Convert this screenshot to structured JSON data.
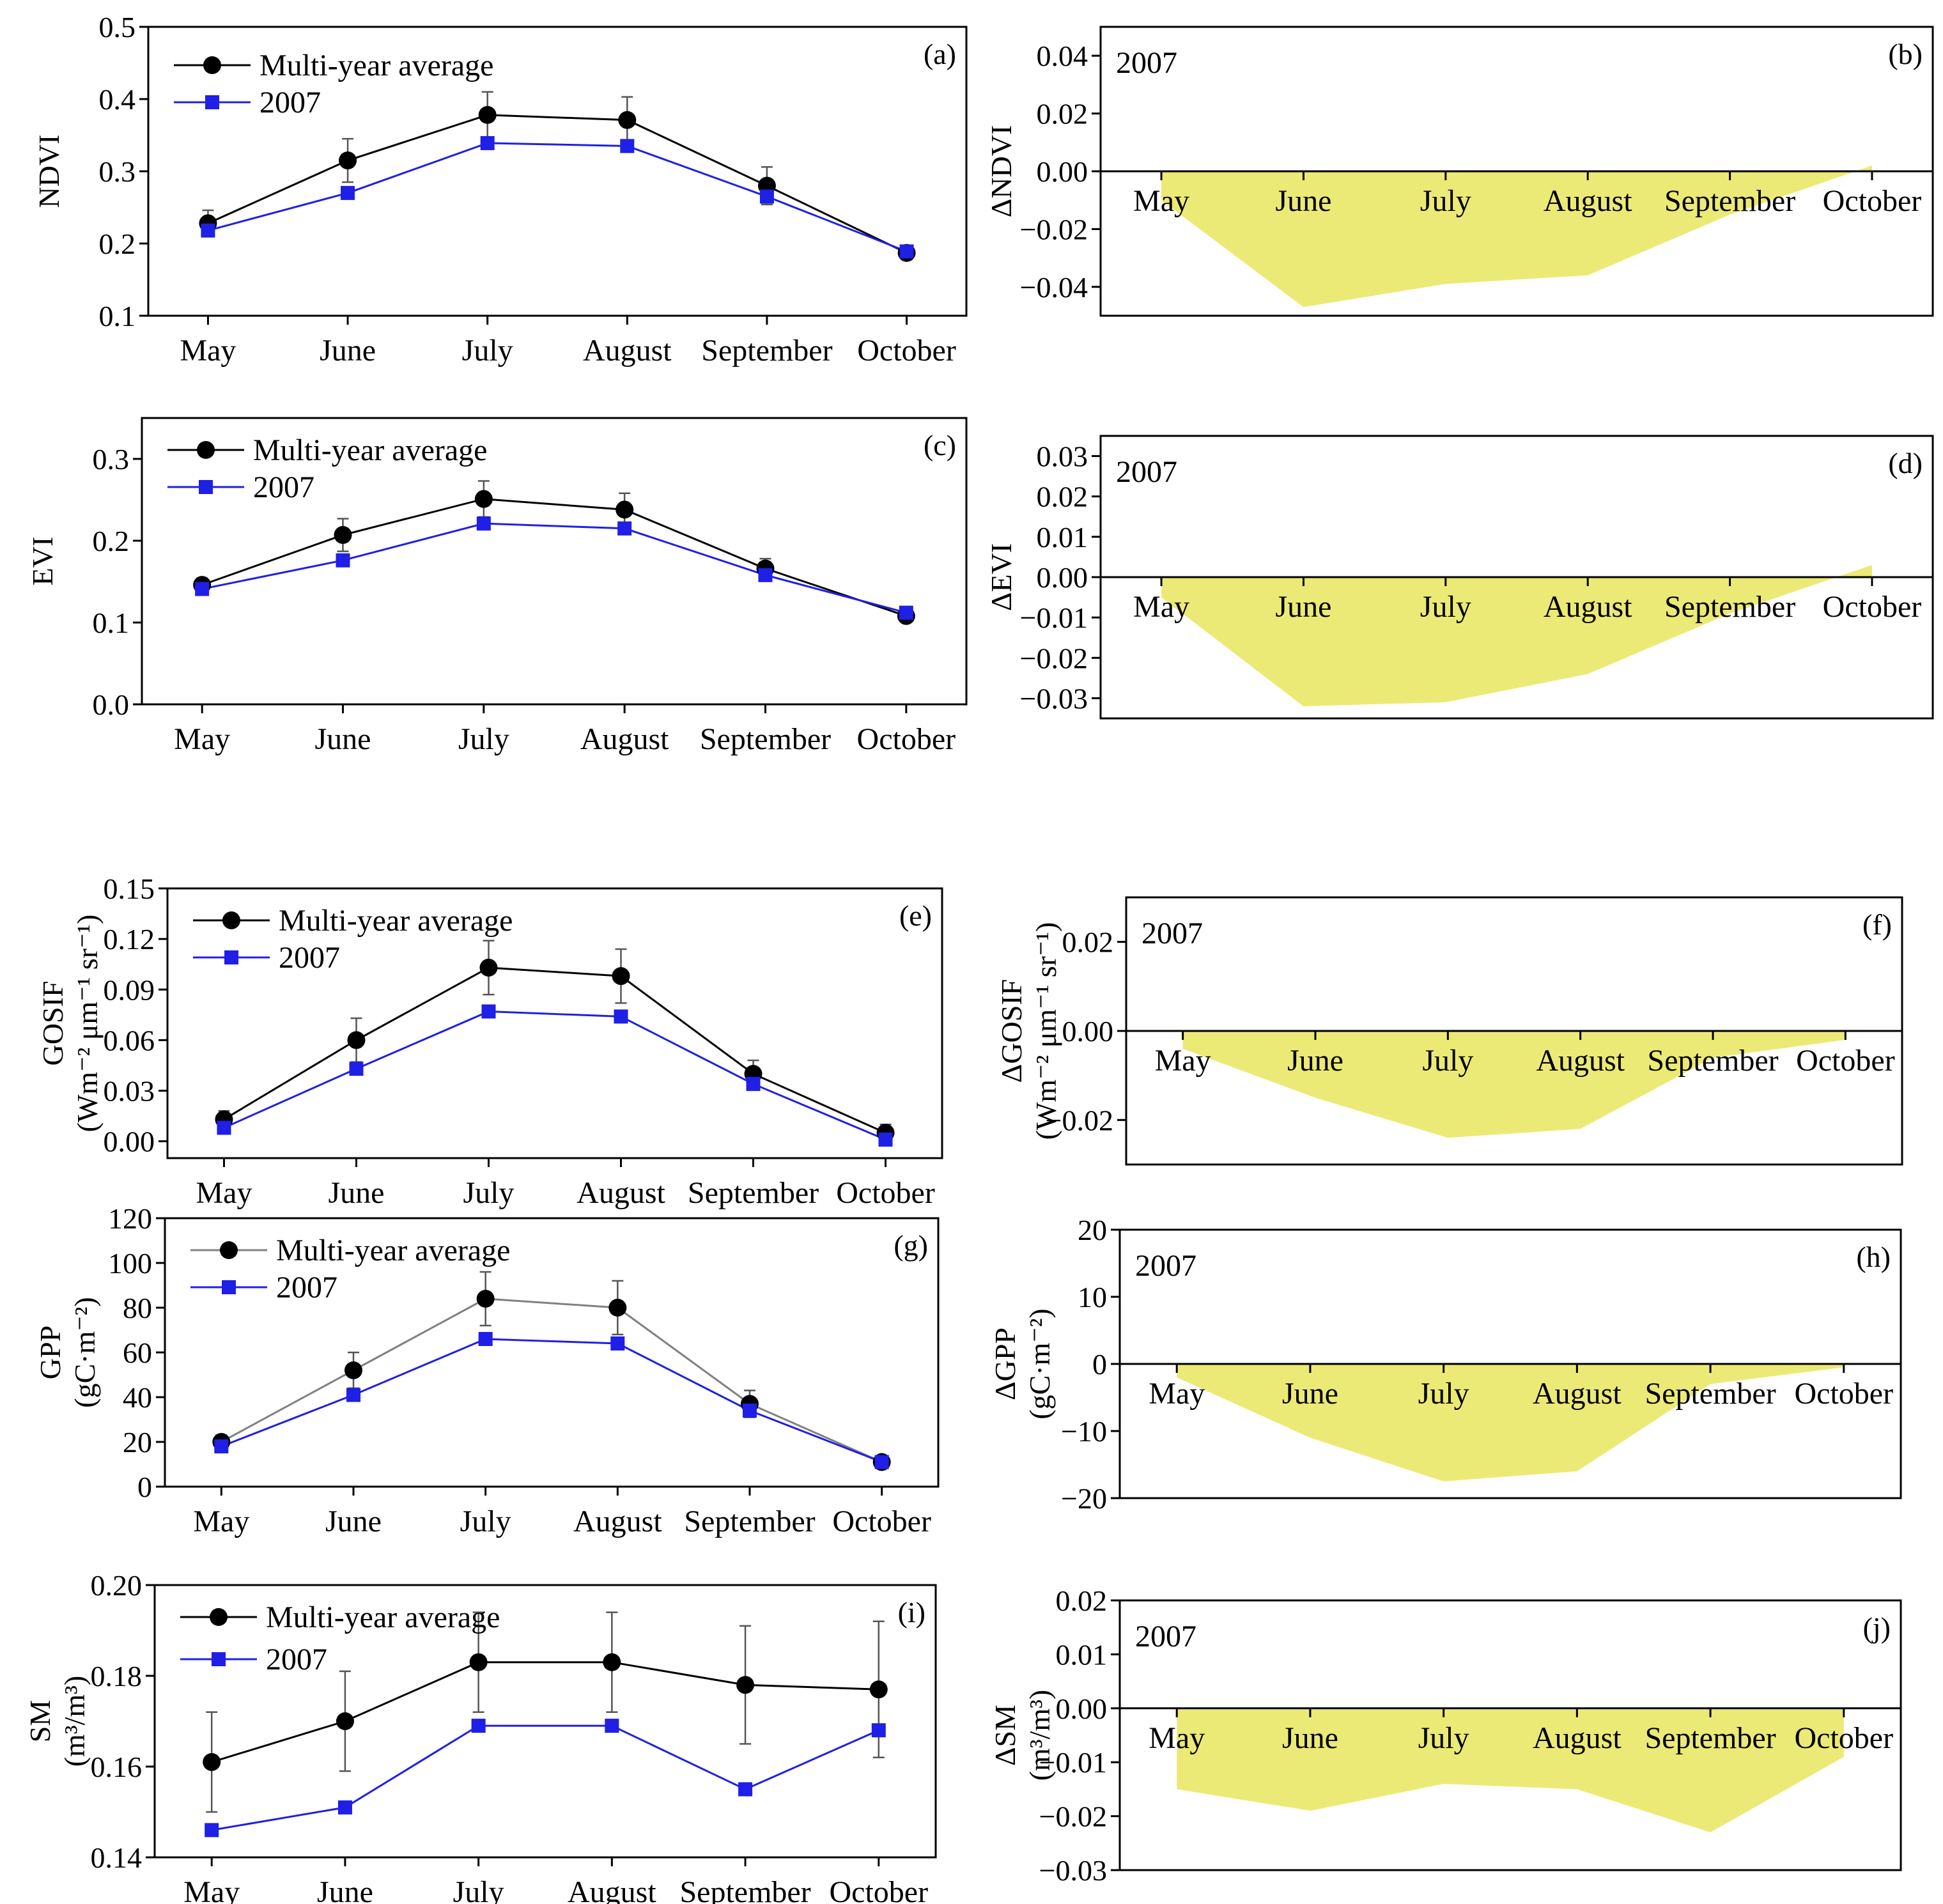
{
  "figure": {
    "months": [
      "May",
      "June",
      "July",
      "August",
      "September",
      "October"
    ],
    "legend_avg": "Multi-year average",
    "legend_year": "2007",
    "year_label": "2007",
    "colors": {
      "avg": "#000000",
      "year": "#1f1fe6",
      "fill": "#ecea76",
      "axis": "#000000"
    }
  },
  "chart_data": [
    {
      "id": "a",
      "type": "line",
      "panel_label": "(a)",
      "ylabel": [
        "NDVI"
      ],
      "ylim": [
        0.1,
        0.5
      ],
      "yticks": [
        0.1,
        0.2,
        0.3,
        0.4,
        0.5
      ],
      "tick_labels": [
        "0.1",
        "0.2",
        "0.3",
        "0.4",
        "0.5"
      ],
      "categories": [
        "May",
        "June",
        "July",
        "August",
        "September",
        "October"
      ],
      "series": [
        {
          "name": "Multi-year average",
          "values": [
            0.228,
            0.315,
            0.378,
            0.371,
            0.28,
            0.187
          ],
          "errors": [
            0.018,
            0.03,
            0.032,
            0.032,
            0.026,
            0.006
          ]
        },
        {
          "name": "2007",
          "values": [
            0.218,
            0.27,
            0.339,
            0.335,
            0.265,
            0.189
          ]
        }
      ]
    },
    {
      "id": "b",
      "type": "area",
      "panel_label": "(b)",
      "ylabel": [
        "ΔNDVI"
      ],
      "ylim": [
        -0.05,
        0.05
      ],
      "yticks": [
        -0.04,
        -0.02,
        0.0,
        0.02,
        0.04
      ],
      "tick_labels": [
        "−0.04",
        "−0.02",
        "0.00",
        "0.02",
        "0.04"
      ],
      "categories": [
        "May",
        "June",
        "July",
        "August",
        "September",
        "October"
      ],
      "values": [
        -0.01,
        -0.047,
        -0.039,
        -0.036,
        -0.015,
        0.002
      ],
      "year_label": "2007"
    },
    {
      "id": "c",
      "type": "line",
      "panel_label": "(c)",
      "ylabel": [
        "EVI"
      ],
      "ylim": [
        0.0,
        0.35
      ],
      "yticks": [
        0.0,
        0.1,
        0.2,
        0.3
      ],
      "tick_labels": [
        "0.0",
        "0.1",
        "0.2",
        "0.3"
      ],
      "categories": [
        "May",
        "June",
        "July",
        "August",
        "September",
        "October"
      ],
      "series": [
        {
          "name": "Multi-year average",
          "values": [
            0.146,
            0.207,
            0.251,
            0.238,
            0.166,
            0.108
          ],
          "errors": [
            0.008,
            0.02,
            0.022,
            0.02,
            0.012,
            0.005
          ]
        },
        {
          "name": "2007",
          "values": [
            0.141,
            0.176,
            0.221,
            0.215,
            0.158,
            0.112
          ]
        }
      ]
    },
    {
      "id": "d",
      "type": "area",
      "panel_label": "(d)",
      "ylabel": [
        "ΔEVI"
      ],
      "ylim": [
        -0.035,
        0.035
      ],
      "yticks": [
        -0.03,
        -0.02,
        -0.01,
        0.0,
        0.01,
        0.02,
        0.03
      ],
      "tick_labels": [
        "−0.03",
        "−0.02",
        "−0.01",
        "0.00",
        "0.01",
        "0.02",
        "0.03"
      ],
      "categories": [
        "May",
        "June",
        "July",
        "August",
        "September",
        "October"
      ],
      "values": [
        -0.005,
        -0.032,
        -0.031,
        -0.024,
        -0.009,
        0.003
      ],
      "year_label": "2007"
    },
    {
      "id": "e",
      "type": "line",
      "panel_label": "(e)",
      "ylabel": [
        "GOSIF",
        "(Wm⁻² μm⁻¹ sr⁻¹)"
      ],
      "ylim": [
        -0.01,
        0.15
      ],
      "yticks": [
        0.0,
        0.03,
        0.06,
        0.09,
        0.12,
        0.15
      ],
      "tick_labels": [
        "0.00",
        "0.03",
        "0.06",
        "0.09",
        "0.12",
        "0.15"
      ],
      "categories": [
        "May",
        "June",
        "July",
        "August",
        "September",
        "October"
      ],
      "series": [
        {
          "name": "Multi-year average",
          "values": [
            0.013,
            0.06,
            0.103,
            0.098,
            0.04,
            0.005
          ],
          "errors": [
            0.005,
            0.013,
            0.016,
            0.016,
            0.008,
            0.005
          ]
        },
        {
          "name": "2007",
          "values": [
            0.008,
            0.043,
            0.077,
            0.074,
            0.034,
            0.001
          ]
        }
      ]
    },
    {
      "id": "f",
      "type": "area",
      "panel_label": "(f)",
      "ylabel": [
        "ΔGOSIF",
        "(Wm⁻² μm⁻¹ sr⁻¹)"
      ],
      "ylim": [
        -0.03,
        0.03
      ],
      "yticks": [
        -0.02,
        0.0,
        0.02
      ],
      "tick_labels": [
        "−0.02",
        "0.00",
        "0.02"
      ],
      "categories": [
        "May",
        "June",
        "July",
        "August",
        "September",
        "October"
      ],
      "values": [
        -0.004,
        -0.015,
        -0.024,
        -0.022,
        -0.006,
        -0.002
      ],
      "year_label": "2007"
    },
    {
      "id": "g",
      "type": "line",
      "panel_label": "(g)",
      "ylabel": [
        "GPP",
        "(gC·m⁻²)"
      ],
      "ylim": [
        0,
        120
      ],
      "yticks": [
        0,
        20,
        40,
        60,
        80,
        100,
        120
      ],
      "tick_labels": [
        "0",
        "20",
        "40",
        "60",
        "80",
        "100",
        "120"
      ],
      "categories": [
        "May",
        "June",
        "July",
        "August",
        "September",
        "October"
      ],
      "series": [
        {
          "name": "Multi-year average",
          "values": [
            20,
            52,
            84,
            80,
            37,
            11
          ],
          "errors": [
            3,
            8,
            12,
            12,
            6,
            2
          ]
        },
        {
          "name": "2007",
          "values": [
            18,
            41,
            66,
            64,
            34,
            11
          ]
        }
      ]
    },
    {
      "id": "h",
      "type": "area",
      "panel_label": "(h)",
      "ylabel": [
        "ΔGPP",
        "(gC·m⁻²)"
      ],
      "ylim": [
        -20,
        20
      ],
      "yticks": [
        -20,
        -10,
        0,
        10,
        20
      ],
      "tick_labels": [
        "−20",
        "−10",
        "0",
        "10",
        "20"
      ],
      "categories": [
        "May",
        "June",
        "July",
        "August",
        "September",
        "October"
      ],
      "values": [
        -2,
        -11,
        -17.5,
        -16,
        -3,
        -0.5
      ],
      "year_label": "2007"
    },
    {
      "id": "i",
      "type": "line",
      "panel_label": "(i)",
      "ylabel": [
        "SM",
        "(m³/m³)"
      ],
      "ylim": [
        0.14,
        0.2
      ],
      "yticks": [
        0.14,
        0.16,
        0.18,
        0.2
      ],
      "tick_labels": [
        "0.14",
        "0.16",
        "0.18",
        "0.20"
      ],
      "categories": [
        "May",
        "June",
        "July",
        "August",
        "September",
        "October"
      ],
      "series": [
        {
          "name": "Multi-year average",
          "values": [
            0.161,
            0.17,
            0.183,
            0.183,
            0.178,
            0.177
          ],
          "errors": [
            0.011,
            0.011,
            0.011,
            0.011,
            0.013,
            0.015
          ]
        },
        {
          "name": "2007",
          "values": [
            0.146,
            0.151,
            0.169,
            0.169,
            0.155,
            0.168
          ]
        }
      ]
    },
    {
      "id": "j",
      "type": "area",
      "panel_label": "(j)",
      "ylabel": [
        "ΔSM",
        "(m³/m³)"
      ],
      "ylim": [
        -0.03,
        0.02
      ],
      "yticks": [
        -0.03,
        -0.02,
        -0.01,
        0.0,
        0.01,
        0.02
      ],
      "tick_labels": [
        "−0.03",
        "−0.02",
        "−0.01",
        "0.00",
        "0.01",
        "0.02"
      ],
      "categories": [
        "May",
        "June",
        "July",
        "August",
        "September",
        "October"
      ],
      "values": [
        -0.015,
        -0.019,
        -0.014,
        -0.015,
        -0.023,
        -0.009
      ],
      "year_label": "2007"
    }
  ]
}
